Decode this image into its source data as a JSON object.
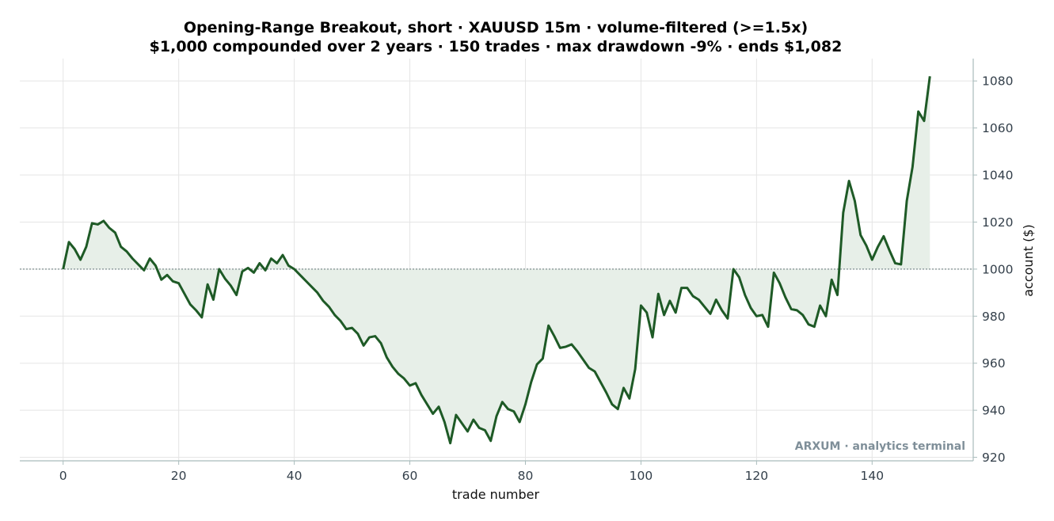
{
  "chart_data": {
    "type": "area",
    "title": "Opening-Range Breakout, short · XAUUSD 15m · volume-filtered (>=1.5x)",
    "subtitle": "$1,000 compounded over 2 years · 150 trades · max drawdown -9% · ends $1,082",
    "xlabel": "trade number",
    "ylabel": "account ($)",
    "watermark": "ARXUM · analytics terminal",
    "xlim": [
      -7.5,
      157.5
    ],
    "ylim": [
      918.5,
      1089.5
    ],
    "x_ticks": [
      0,
      20,
      40,
      60,
      80,
      100,
      120,
      140
    ],
    "y_ticks": [
      920,
      940,
      960,
      980,
      1000,
      1020,
      1040,
      1060,
      1080
    ],
    "y_axis_side": "right",
    "baseline": 1000,
    "grid": true,
    "legend": "none",
    "colors": {
      "line": "#1e5a26",
      "fill": "#e7efe8",
      "baseline": "#7f8f8f",
      "grid": "#e5e5e5",
      "spine": "#a9bcbc"
    },
    "series": [
      {
        "x": [
          0,
          1,
          2,
          3,
          4,
          5,
          6,
          7,
          8,
          9,
          10,
          11,
          12,
          13,
          14,
          15,
          16,
          17,
          18,
          19,
          20,
          21,
          22,
          23,
          24,
          25,
          26,
          27,
          28,
          29,
          30,
          31,
          32,
          33,
          34,
          35,
          36,
          37,
          38,
          39,
          40,
          41,
          42,
          43,
          44,
          45,
          46,
          47,
          48,
          49,
          50,
          51,
          52,
          53,
          54,
          55,
          56,
          57,
          58,
          59,
          60,
          61,
          62,
          63,
          64,
          65,
          66,
          67,
          68,
          69,
          70,
          71,
          72,
          73,
          74,
          75,
          76,
          77,
          78,
          79,
          80,
          81,
          82,
          83,
          84,
          85,
          86,
          87,
          88,
          89,
          90,
          91,
          92,
          93,
          94,
          95,
          96,
          97,
          98,
          99,
          100,
          101,
          102,
          103,
          104,
          105,
          106,
          107,
          108,
          109,
          110,
          111,
          112,
          113,
          114,
          115,
          116,
          117,
          118,
          119,
          120,
          121,
          122,
          123,
          124,
          125,
          126,
          127,
          128,
          129,
          130,
          131,
          132,
          133,
          134,
          135,
          136,
          137,
          138,
          139,
          140,
          141,
          142,
          143,
          144,
          145,
          146,
          147,
          148,
          149,
          150
        ],
        "values": [
          1000,
          1011.5,
          1008.5,
          1004,
          1009.5,
          1019.5,
          1019,
          1020.5,
          1017.5,
          1015.5,
          1009.5,
          1007.5,
          1004.5,
          1002,
          999.5,
          1004.5,
          1001.5,
          995.5,
          997.5,
          994.8,
          994,
          989.5,
          985,
          982.5,
          979.5,
          993.5,
          987,
          1000,
          996,
          993,
          989,
          999,
          1000.5,
          998.5,
          1002.5,
          999.5,
          1004.5,
          1002.5,
          1006,
          1001.5,
          1000,
          997.5,
          995,
          992.5,
          990,
          986.5,
          984,
          980.5,
          978,
          974.5,
          975,
          972.5,
          967.5,
          971,
          971.5,
          968.5,
          962.5,
          958.5,
          955.5,
          953.5,
          950.5,
          951.5,
          946.5,
          942.5,
          938.5,
          941.5,
          935,
          926,
          938,
          934.5,
          931,
          936,
          932.5,
          931.5,
          927,
          937.5,
          943.5,
          940.5,
          939.5,
          935,
          942.5,
          952,
          959.5,
          962,
          976,
          971.5,
          966.5,
          967,
          968,
          965,
          961.5,
          958,
          956.5,
          952,
          947.5,
          942.5,
          940.5,
          949.5,
          945,
          957.5,
          984.5,
          981.5,
          971,
          989.5,
          980.5,
          986.5,
          981.5,
          992,
          992,
          988.5,
          987,
          984,
          981,
          987,
          982.5,
          979,
          1000,
          996.5,
          989,
          983.5,
          980,
          980.5,
          975.5,
          998.5,
          994,
          988,
          983,
          982.5,
          980.5,
          976.5,
          975.5,
          984.5,
          980,
          995.5,
          989,
          1024,
          1037.5,
          1029,
          1014.5,
          1010,
          1004,
          1009.5,
          1014,
          1008,
          1002.5,
          1002,
          1029,
          1043.5,
          1067,
          1063,
          1082
        ]
      }
    ]
  }
}
